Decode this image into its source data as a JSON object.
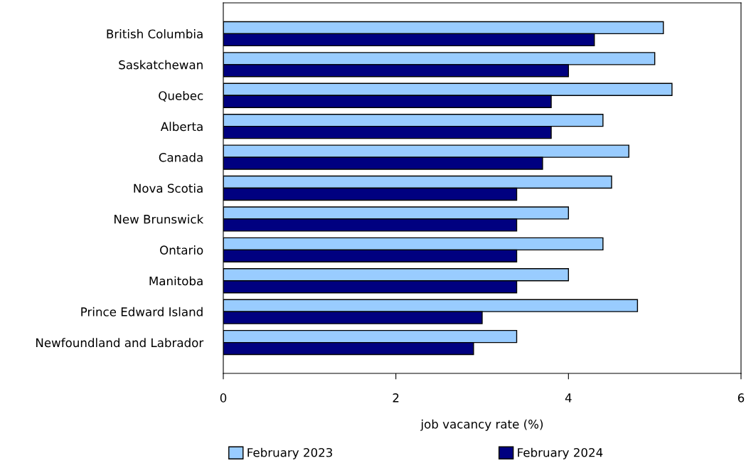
{
  "chart_data": {
    "type": "bar",
    "orientation": "horizontal",
    "xlabel": "job vacancy rate (%)",
    "categories": [
      "British Columbia",
      "Saskatchewan",
      "Quebec",
      "Alberta",
      "Canada",
      "Nova Scotia",
      "New Brunswick",
      "Ontario",
      "Manitoba",
      "Prince Edward Island",
      "Newfoundland and Labrador"
    ],
    "series": [
      {
        "name": "February 2023",
        "color": "#99ccff",
        "values": [
          5.1,
          5.0,
          5.2,
          4.4,
          4.7,
          4.5,
          4.0,
          4.4,
          4.0,
          4.8,
          3.4
        ]
      },
      {
        "name": "February 2024",
        "color": "#000080",
        "values": [
          4.3,
          4.0,
          3.8,
          3.8,
          3.7,
          3.4,
          3.4,
          3.4,
          3.4,
          3.0,
          2.9
        ]
      }
    ],
    "xlim": [
      0,
      6
    ],
    "xticks": [
      0,
      2,
      4,
      6
    ],
    "grid": false,
    "legend": "bottom"
  }
}
